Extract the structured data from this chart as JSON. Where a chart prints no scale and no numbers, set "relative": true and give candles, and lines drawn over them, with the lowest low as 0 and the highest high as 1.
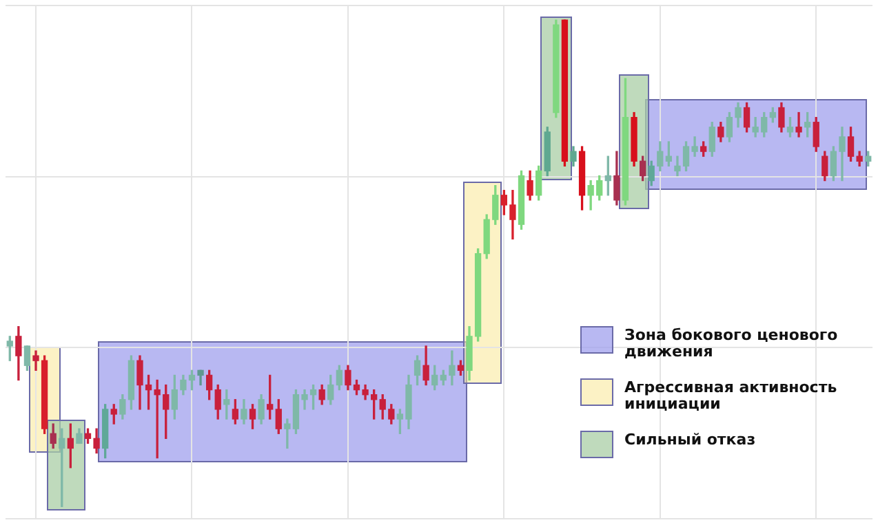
{
  "chart_data": {
    "type": "candlestick",
    "relative": true,
    "grid": true,
    "tick_labels": false,
    "categories": [
      null,
      null,
      null,
      null,
      null,
      null,
      null,
      null,
      null,
      null,
      null,
      null,
      null,
      null,
      null,
      null,
      null,
      null,
      null,
      null,
      null,
      null,
      null,
      null,
      null,
      null,
      null,
      null,
      null,
      null,
      null,
      null,
      null,
      null,
      null,
      null,
      null,
      null,
      null,
      null,
      null,
      null,
      null,
      null,
      null,
      null,
      null,
      null,
      null,
      null,
      null,
      null,
      null,
      null,
      null,
      null,
      null,
      null,
      null,
      null,
      null,
      null,
      null,
      null,
      null,
      null,
      null,
      null,
      null,
      null,
      null,
      null,
      null,
      null,
      null,
      null,
      null,
      null,
      null,
      null,
      null,
      null,
      null,
      null,
      null,
      null,
      null,
      null,
      null,
      null,
      null,
      null,
      null,
      null,
      null,
      null,
      null,
      null,
      null,
      null
    ],
    "ohlc": [
      [
        0.33,
        0.35,
        0.3,
        0.34
      ],
      [
        0.35,
        0.37,
        0.26,
        0.31
      ],
      [
        0.29,
        0.33,
        0.28,
        0.33
      ],
      [
        0.31,
        0.32,
        0.28,
        0.3
      ],
      [
        0.3,
        0.31,
        0.15,
        0.16
      ],
      [
        0.15,
        0.17,
        0.12,
        0.13
      ],
      [
        0.12,
        0.16,
        0.0,
        0.14
      ],
      [
        0.14,
        0.17,
        0.08,
        0.12
      ],
      [
        0.13,
        0.16,
        0.13,
        0.15
      ],
      [
        0.15,
        0.16,
        0.13,
        0.14
      ],
      [
        0.14,
        0.16,
        0.11,
        0.12
      ],
      [
        0.12,
        0.21,
        0.1,
        0.2
      ],
      [
        0.2,
        0.21,
        0.17,
        0.19
      ],
      [
        0.19,
        0.23,
        0.18,
        0.22
      ],
      [
        0.22,
        0.31,
        0.2,
        0.3
      ],
      [
        0.3,
        0.31,
        0.2,
        0.25
      ],
      [
        0.25,
        0.27,
        0.2,
        0.24
      ],
      [
        0.24,
        0.26,
        0.1,
        0.23
      ],
      [
        0.23,
        0.25,
        0.14,
        0.2
      ],
      [
        0.2,
        0.27,
        0.18,
        0.24
      ],
      [
        0.24,
        0.27,
        0.23,
        0.26
      ],
      [
        0.26,
        0.28,
        0.24,
        0.27
      ],
      [
        0.27,
        0.28,
        0.25,
        0.28
      ],
      [
        0.27,
        0.28,
        0.22,
        0.24
      ],
      [
        0.24,
        0.25,
        0.18,
        0.2
      ],
      [
        0.21,
        0.24,
        0.18,
        0.22
      ],
      [
        0.2,
        0.22,
        0.17,
        0.18
      ],
      [
        0.18,
        0.22,
        0.17,
        0.2
      ],
      [
        0.2,
        0.21,
        0.16,
        0.18
      ],
      [
        0.18,
        0.23,
        0.17,
        0.22
      ],
      [
        0.21,
        0.27,
        0.18,
        0.2
      ],
      [
        0.2,
        0.22,
        0.15,
        0.16
      ],
      [
        0.16,
        0.18,
        0.12,
        0.17
      ],
      [
        0.16,
        0.24,
        0.15,
        0.23
      ],
      [
        0.22,
        0.24,
        0.2,
        0.23
      ],
      [
        0.23,
        0.25,
        0.2,
        0.24
      ],
      [
        0.24,
        0.25,
        0.21,
        0.22
      ],
      [
        0.22,
        0.27,
        0.21,
        0.25
      ],
      [
        0.25,
        0.29,
        0.24,
        0.28
      ],
      [
        0.28,
        0.29,
        0.24,
        0.25
      ],
      [
        0.25,
        0.26,
        0.23,
        0.24
      ],
      [
        0.24,
        0.25,
        0.22,
        0.23
      ],
      [
        0.23,
        0.24,
        0.18,
        0.22
      ],
      [
        0.22,
        0.23,
        0.18,
        0.2
      ],
      [
        0.2,
        0.21,
        0.17,
        0.18
      ],
      [
        0.18,
        0.2,
        0.15,
        0.19
      ],
      [
        0.18,
        0.27,
        0.16,
        0.25
      ],
      [
        0.27,
        0.31,
        0.25,
        0.3
      ],
      [
        0.29,
        0.33,
        0.25,
        0.26
      ],
      [
        0.25,
        0.29,
        0.24,
        0.27
      ],
      [
        0.26,
        0.28,
        0.25,
        0.27
      ],
      [
        0.27,
        0.32,
        0.25,
        0.29
      ],
      [
        0.29,
        0.3,
        0.27,
        0.28
      ],
      [
        0.28,
        0.37,
        0.26,
        0.35
      ],
      [
        0.35,
        0.53,
        0.34,
        0.52
      ],
      [
        0.52,
        0.6,
        0.51,
        0.59
      ],
      [
        0.59,
        0.66,
        0.58,
        0.64
      ],
      [
        0.64,
        0.65,
        0.6,
        0.62
      ],
      [
        0.62,
        0.65,
        0.55,
        0.59
      ],
      [
        0.58,
        0.69,
        0.57,
        0.68
      ],
      [
        0.67,
        0.69,
        0.63,
        0.64
      ],
      [
        0.64,
        0.7,
        0.63,
        0.69
      ],
      [
        0.69,
        0.78,
        0.68,
        0.77
      ],
      [
        0.81,
        1.0,
        0.8,
        0.99
      ],
      [
        1.0,
        1.0,
        0.7,
        0.71
      ],
      [
        0.71,
        0.74,
        0.7,
        0.73
      ],
      [
        0.73,
        0.74,
        0.61,
        0.64
      ],
      [
        0.64,
        0.67,
        0.61,
        0.66
      ],
      [
        0.64,
        0.68,
        0.63,
        0.67
      ],
      [
        0.67,
        0.72,
        0.64,
        0.68
      ],
      [
        0.68,
        0.73,
        0.62,
        0.63
      ],
      [
        0.63,
        0.88,
        0.62,
        0.8
      ],
      [
        0.8,
        0.81,
        0.7,
        0.71
      ],
      [
        0.71,
        0.72,
        0.67,
        0.68
      ],
      [
        0.67,
        0.71,
        0.66,
        0.7
      ],
      [
        0.7,
        0.75,
        0.69,
        0.73
      ],
      [
        0.71,
        0.75,
        0.7,
        0.72
      ],
      [
        0.69,
        0.72,
        0.68,
        0.7
      ],
      [
        0.7,
        0.75,
        0.69,
        0.74
      ],
      [
        0.73,
        0.76,
        0.72,
        0.74
      ],
      [
        0.74,
        0.75,
        0.72,
        0.73
      ],
      [
        0.73,
        0.79,
        0.72,
        0.78
      ],
      [
        0.78,
        0.79,
        0.75,
        0.76
      ],
      [
        0.76,
        0.81,
        0.75,
        0.8
      ],
      [
        0.8,
        0.83,
        0.78,
        0.82
      ],
      [
        0.82,
        0.83,
        0.77,
        0.78
      ],
      [
        0.77,
        0.8,
        0.76,
        0.78
      ],
      [
        0.77,
        0.81,
        0.76,
        0.8
      ],
      [
        0.8,
        0.82,
        0.79,
        0.81
      ],
      [
        0.82,
        0.83,
        0.77,
        0.78
      ],
      [
        0.77,
        0.8,
        0.76,
        0.78
      ],
      [
        0.78,
        0.81,
        0.76,
        0.77
      ],
      [
        0.78,
        0.81,
        0.76,
        0.79
      ],
      [
        0.79,
        0.8,
        0.73,
        0.74
      ],
      [
        0.72,
        0.73,
        0.67,
        0.68
      ],
      [
        0.68,
        0.74,
        0.67,
        0.73
      ],
      [
        0.73,
        0.78,
        0.67,
        0.76
      ],
      [
        0.76,
        0.78,
        0.71,
        0.72
      ],
      [
        0.72,
        0.73,
        0.7,
        0.71
      ],
      [
        0.71,
        0.73,
        0.7,
        0.72
      ]
    ],
    "colors": [
      "#7fb8a8",
      "#c8203c",
      "#7fb8a8",
      "#c8203c",
      "#d8202c",
      "#a83050",
      "#7fb8a8",
      "#c8203c",
      "#7fb8a8",
      "#c8203c",
      "#c8203c",
      "#5fa898",
      "#c8203c",
      "#7fb8a8",
      "#7fb8a8",
      "#c8203c",
      "#c8203c",
      "#c8203c",
      "#c8203c",
      "#7fb8a8",
      "#7fb8a8",
      "#7fb8a8",
      "#5f9890",
      "#c8203c",
      "#c8203c",
      "#7fb8a8",
      "#c8203c",
      "#7fb8a8",
      "#c8203c",
      "#7fb8a8",
      "#c8203c",
      "#c8203c",
      "#7fb8a8",
      "#7fb8a8",
      "#7fb8a8",
      "#7fb8a8",
      "#c8203c",
      "#7fb8a8",
      "#7fb8a8",
      "#c8203c",
      "#c8203c",
      "#c8203c",
      "#c8203c",
      "#c8203c",
      "#c8203c",
      "#7fb8a8",
      "#7fb8a8",
      "#7fb8a8",
      "#c8203c",
      "#7fb8a8",
      "#7fb8a8",
      "#7fb8a8",
      "#c8203c",
      "#7fd87f",
      "#7fd87f",
      "#7fd87f",
      "#7fd87f",
      "#d8202c",
      "#d8202c",
      "#7fd87f",
      "#d8202c",
      "#7fd87f",
      "#5fa890",
      "#7fd87f",
      "#d8101c",
      "#5fa890",
      "#d8101c",
      "#7fd87f",
      "#7fd87f",
      "#7fb8a8",
      "#a83050",
      "#7fd87f",
      "#d8101c",
      "#a83050",
      "#5fa898",
      "#7fb8a8",
      "#7fb8a8",
      "#7fb8a8",
      "#7fb8a8",
      "#7fb8a8",
      "#c8203c",
      "#7fb8a8",
      "#c8203c",
      "#7fb8a8",
      "#7fb8a8",
      "#c8203c",
      "#7fb8a8",
      "#7fb8a8",
      "#7fb8a8",
      "#c8203c",
      "#7fb8a8",
      "#c8203c",
      "#7fb8a8",
      "#c8203c",
      "#c8203c",
      "#7fb8a8",
      "#7fb8a8",
      "#c8203c",
      "#c8203c",
      "#7fb8a8"
    ],
    "annotations": [
      "Зона бокового ценового движения",
      "Агрессивная активность инициации",
      "Сильный отказ"
    ]
  }
}
